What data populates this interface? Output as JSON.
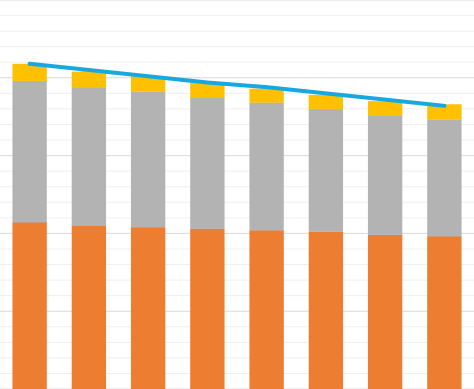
{
  "chart_data": {
    "type": "bar",
    "stacked": true,
    "categories": [
      null,
      null,
      null,
      null,
      null,
      null,
      null,
      null
    ],
    "series": [
      {
        "color": "#ed7d31",
        "values": [
          10.7,
          10.5,
          10.4,
          10.3,
          10.2,
          10.1,
          9.9,
          9.8
        ]
      },
      {
        "color": "#b3b3b3",
        "values": [
          9.1,
          8.9,
          8.7,
          8.4,
          8.2,
          7.9,
          7.7,
          7.5
        ]
      },
      {
        "color": "#ffc000",
        "values": [
          1.1,
          1.0,
          1.0,
          1.0,
          0.9,
          0.9,
          0.9,
          1.0
        ]
      },
      {
        "type": "line",
        "color": "#16a9e1",
        "values": [
          20.9,
          20.5,
          20.1,
          19.7,
          19.4,
          19.0,
          18.6,
          18.2
        ]
      }
    ],
    "ylim": [
      0,
      25
    ],
    "yticks": [
      0,
      5,
      10,
      15,
      20,
      25
    ],
    "minor_yticks": [
      1,
      2,
      3,
      4,
      6,
      7,
      8,
      9,
      11,
      12,
      13,
      14,
      16,
      17,
      18,
      19,
      21,
      22,
      23,
      24
    ],
    "grid": true,
    "tick_labels": false
  }
}
